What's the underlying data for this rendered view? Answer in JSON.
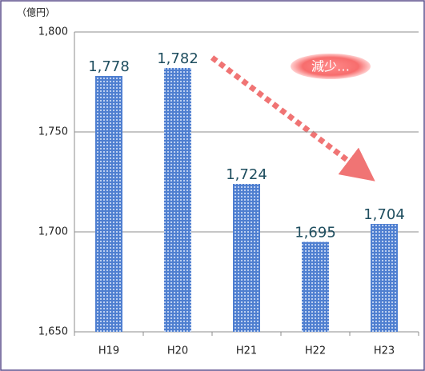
{
  "chart_data": {
    "type": "bar",
    "unit_label": "（億円）",
    "categories": [
      "H19",
      "H20",
      "H21",
      "H22",
      "H23"
    ],
    "values": [
      1778,
      1782,
      1724,
      1695,
      1704
    ],
    "value_labels": [
      "1,778",
      "1,782",
      "1,724",
      "1,695",
      "1,704"
    ],
    "color": "#4f7fd0",
    "ylim": [
      1650,
      1800
    ],
    "yticks": [
      {
        "value": 1650,
        "label": "1,650"
      },
      {
        "value": 1700,
        "label": "1,700"
      },
      {
        "value": 1750,
        "label": "1,750"
      },
      {
        "value": 1800,
        "label": "1,800"
      }
    ],
    "grid": true,
    "annotation": "減少…"
  }
}
